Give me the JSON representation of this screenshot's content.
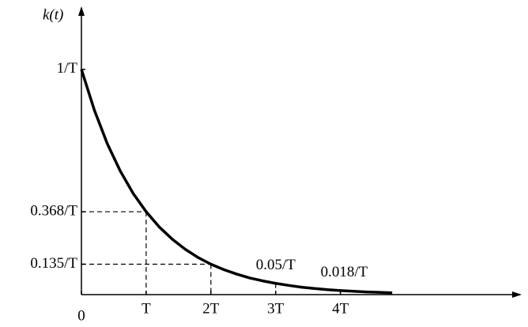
{
  "chart_data": {
    "type": "line",
    "y_label": "k(t)",
    "x": [
      0,
      0.2,
      0.4,
      0.6,
      0.8,
      1,
      1.2,
      1.4,
      1.6,
      1.8,
      2,
      2.2,
      2.4,
      2.6,
      2.8,
      3,
      3.2,
      3.4,
      3.6,
      3.8,
      4,
      4.2,
      4.4,
      4.6,
      4.8
    ],
    "series": [
      {
        "color": "#000000",
        "values": [
          1,
          0.819,
          0.67,
          0.549,
          0.449,
          0.368,
          0.301,
          0.247,
          0.202,
          0.165,
          0.135,
          0.111,
          0.091,
          0.074,
          0.061,
          0.05,
          0.041,
          0.033,
          0.027,
          0.022,
          0.018,
          0.015,
          0.012,
          0.01,
          0.008
        ]
      }
    ],
    "xlim": [
      0,
      6.8
    ],
    "ylim": [
      0,
      1.28
    ],
    "xticks": [
      0,
      {
        "value": 1,
        "label": "T"
      },
      {
        "value": 2,
        "label": "2T"
      },
      {
        "value": 3,
        "label": "3T"
      },
      {
        "value": 4,
        "label": "4T"
      }
    ],
    "yticks": [
      {
        "value": 1,
        "label": "1/T"
      },
      {
        "value": 0.368,
        "label": "0.368/T"
      },
      {
        "value": 0.135,
        "label": "0.135/T"
      }
    ],
    "guides": [
      {
        "x": 1,
        "y": 0.368
      },
      {
        "x": 2,
        "y": 0.135
      }
    ],
    "annotations": [
      {
        "x": 3,
        "y": 0.05,
        "label": "0.05/T"
      },
      {
        "x": 4,
        "y": 0.018,
        "label": "0.018/T"
      }
    ],
    "grid": false
  }
}
